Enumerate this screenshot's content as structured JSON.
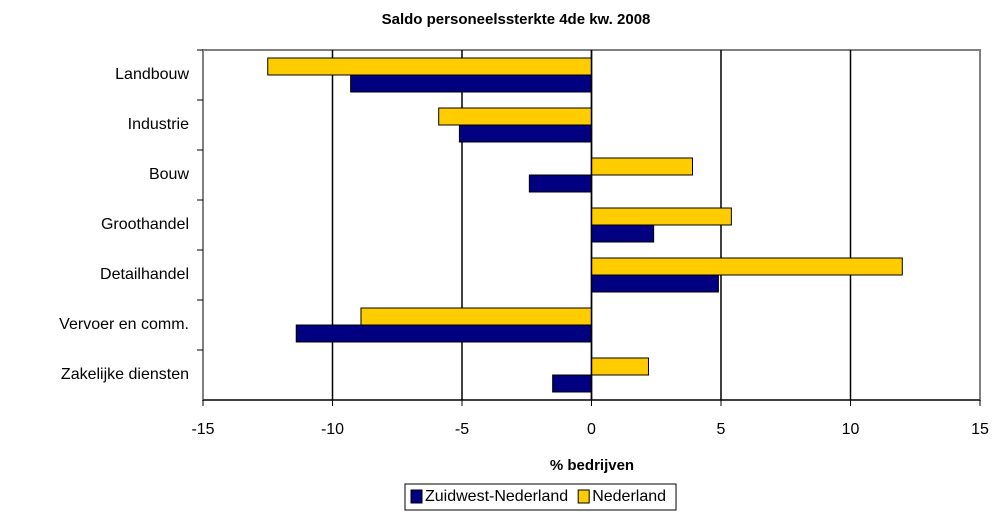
{
  "chart_data": {
    "type": "barh",
    "title": "Saldo personeelssterkte 4de kw. 2008",
    "xlabel": "% bedrijven",
    "categories": [
      "Landbouw",
      "Industrie",
      "Bouw",
      "Groothandel",
      "Detailhandel",
      "Vervoer en comm.",
      "Zakelijke diensten"
    ],
    "series": [
      {
        "name": "Zuidwest-Nederland",
        "color": "#000080",
        "values": [
          -9.3,
          -5.1,
          -2.4,
          2.4,
          4.9,
          -11.4,
          -1.5
        ]
      },
      {
        "name": "Nederland",
        "color": "#ffcc00",
        "values": [
          -12.5,
          -5.9,
          3.9,
          5.4,
          12.0,
          -8.9,
          2.2
        ]
      }
    ],
    "xlim": [
      -15,
      15
    ],
    "xticks": [
      -15,
      -10,
      -5,
      0,
      5,
      10,
      15
    ],
    "grid": true,
    "legend": "bottom"
  }
}
